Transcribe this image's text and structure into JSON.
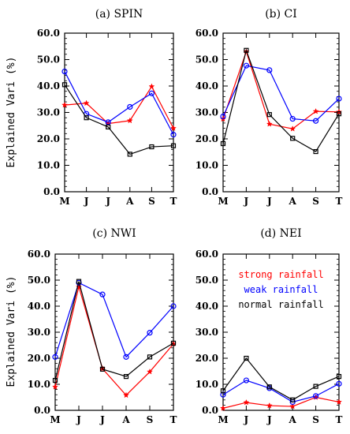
{
  "figure": {
    "ylabel": "Explained Vari (%)"
  },
  "chart_data": [
    {
      "type": "line",
      "title": "(a) SPIN",
      "categories": [
        "M",
        "J",
        "J",
        "A",
        "S",
        "T"
      ],
      "yticks": [
        "0.0",
        "10.0",
        "20.0",
        "30.0",
        "40.0",
        "50.0",
        "60.0"
      ],
      "ylim": [
        0,
        60
      ],
      "grid": false,
      "series": [
        {
          "name": "strong rainfall",
          "color": "#ff0000",
          "marker": "star",
          "values": [
            32.8,
            33.5,
            25.8,
            26.9,
            39.8,
            24.0
          ]
        },
        {
          "name": "weak rainfall",
          "color": "#0000ff",
          "marker": "circle",
          "values": [
            45.5,
            29.5,
            26.3,
            32.1,
            37.2,
            21.6
          ]
        },
        {
          "name": "normal rainfall",
          "color": "#000000",
          "marker": "square",
          "values": [
            40.5,
            28.0,
            24.5,
            14.2,
            17.0,
            17.4
          ]
        }
      ]
    },
    {
      "type": "line",
      "title": "(b) CI",
      "categories": [
        "M",
        "J",
        "J",
        "A",
        "S",
        "T"
      ],
      "yticks": [
        "0.0",
        "10.0",
        "20.0",
        "30.0",
        "40.0",
        "50.0",
        "60.0"
      ],
      "ylim": [
        0,
        60
      ],
      "grid": false,
      "series": [
        {
          "name": "strong rainfall",
          "color": "#ff0000",
          "marker": "star",
          "values": [
            27.5,
            53.0,
            25.6,
            23.8,
            30.4,
            30.2
          ]
        },
        {
          "name": "weak rainfall",
          "color": "#0000ff",
          "marker": "circle",
          "values": [
            28.5,
            47.7,
            46.0,
            27.6,
            26.8,
            35.2
          ]
        },
        {
          "name": "normal rainfall",
          "color": "#000000",
          "marker": "square",
          "values": [
            18.2,
            53.5,
            29.2,
            20.2,
            15.2,
            29.5
          ]
        }
      ]
    },
    {
      "type": "line",
      "title": "(c) NWI",
      "categories": [
        "M",
        "J",
        "J",
        "A",
        "S",
        "T"
      ],
      "yticks": [
        "0.0",
        "10.0",
        "20.0",
        "30.0",
        "40.0",
        "50.0",
        "60.0"
      ],
      "ylim": [
        0,
        60
      ],
      "grid": false,
      "series": [
        {
          "name": "strong rainfall",
          "color": "#ff0000",
          "marker": "star",
          "values": [
            9.0,
            47.5,
            16.0,
            5.8,
            14.8,
            25.5
          ]
        },
        {
          "name": "weak rainfall",
          "color": "#0000ff",
          "marker": "circle",
          "values": [
            20.5,
            49.0,
            44.5,
            20.5,
            29.8,
            40.0
          ]
        },
        {
          "name": "normal rainfall",
          "color": "#000000",
          "marker": "square",
          "values": [
            11.5,
            49.5,
            15.8,
            13.0,
            20.5,
            25.8
          ]
        }
      ]
    },
    {
      "type": "line",
      "title": "(d) NEI",
      "categories": [
        "M",
        "J",
        "J",
        "A",
        "S",
        "T"
      ],
      "yticks": [
        "0.0",
        "10.0",
        "20.0",
        "30.0",
        "40.0",
        "50.0",
        "60.0"
      ],
      "ylim": [
        0,
        60
      ],
      "grid": false,
      "legend": "upper-center",
      "series": [
        {
          "name": "strong rainfall",
          "color": "#ff0000",
          "marker": "star",
          "values": [
            0.8,
            3.0,
            1.8,
            1.5,
            5.0,
            3.2
          ]
        },
        {
          "name": "weak rainfall",
          "color": "#0000ff",
          "marker": "circle",
          "values": [
            6.0,
            11.5,
            8.5,
            3.2,
            5.5,
            10.2
          ]
        },
        {
          "name": "normal rainfall",
          "color": "#000000",
          "marker": "square",
          "values": [
            7.5,
            20.0,
            9.0,
            4.0,
            9.2,
            13.0
          ]
        }
      ]
    }
  ]
}
